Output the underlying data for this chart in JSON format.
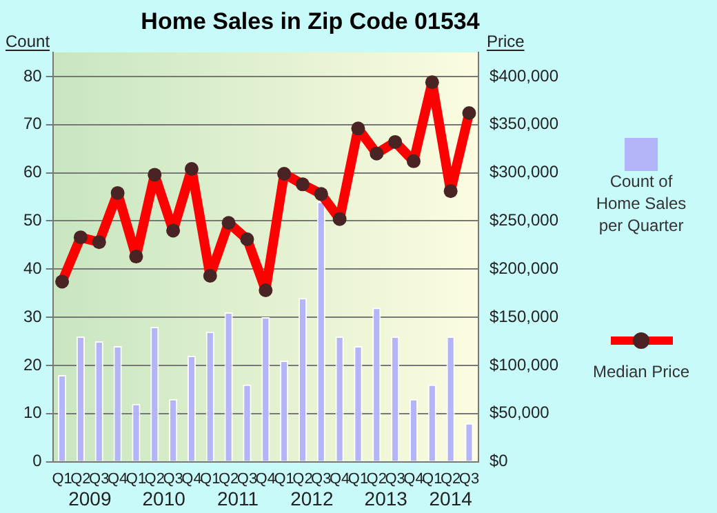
{
  "chart_data": {
    "type": "bar",
    "title": "Home Sales in Zip Code 01534",
    "ylabel": "Count",
    "y2label": "Price",
    "categories": [
      "Q1",
      "Q2",
      "Q3",
      "Q4",
      "Q1",
      "Q2",
      "Q3",
      "Q4",
      "Q1",
      "Q2",
      "Q3",
      "Q4",
      "Q1",
      "Q2",
      "Q3",
      "Q4",
      "Q1",
      "Q2",
      "Q3",
      "Q4",
      "Q1",
      "Q2",
      "Q3"
    ],
    "annotations": [
      "2009",
      "2010",
      "2011",
      "2012",
      "2013",
      "2014"
    ],
    "series": [
      {
        "name": "Count of Home Sales per Quarter",
        "color": "#b4b4f8",
        "values": [
          18,
          26,
          25,
          24,
          12,
          28,
          13,
          22,
          27,
          31,
          16,
          30,
          21,
          34,
          54,
          26,
          24,
          32,
          26,
          13,
          16,
          26,
          8
        ]
      },
      {
        "name": "Median Price",
        "type": "line",
        "axis": "y2",
        "color": "#ff0000",
        "values": [
          187000,
          233000,
          228000,
          279000,
          213000,
          298000,
          240000,
          304000,
          193000,
          248000,
          231000,
          178000,
          299000,
          288000,
          278000,
          252000,
          346000,
          320000,
          332000,
          312000,
          394000,
          281000,
          362000
        ]
      }
    ],
    "ylim": [
      0,
      85
    ],
    "yticks": [
      0,
      10,
      20,
      30,
      40,
      50,
      60,
      70,
      80
    ],
    "y2lim": [
      0,
      425000
    ],
    "y2ticks": [
      {
        "value": 0,
        "label": "$0"
      },
      {
        "value": 50000,
        "label": "$50,000"
      },
      {
        "value": 100000,
        "label": "$100,000"
      },
      {
        "value": 150000,
        "label": "$150,000"
      },
      {
        "value": 200000,
        "label": "$200,000"
      },
      {
        "value": 250000,
        "label": "$250,000"
      },
      {
        "value": 300000,
        "label": "$300,000"
      },
      {
        "value": 350000,
        "label": "$350,000"
      },
      {
        "value": 400000,
        "label": "$400,000"
      }
    ],
    "grid": "y",
    "legend": "right",
    "marker": "circle",
    "line_style": "solid"
  }
}
